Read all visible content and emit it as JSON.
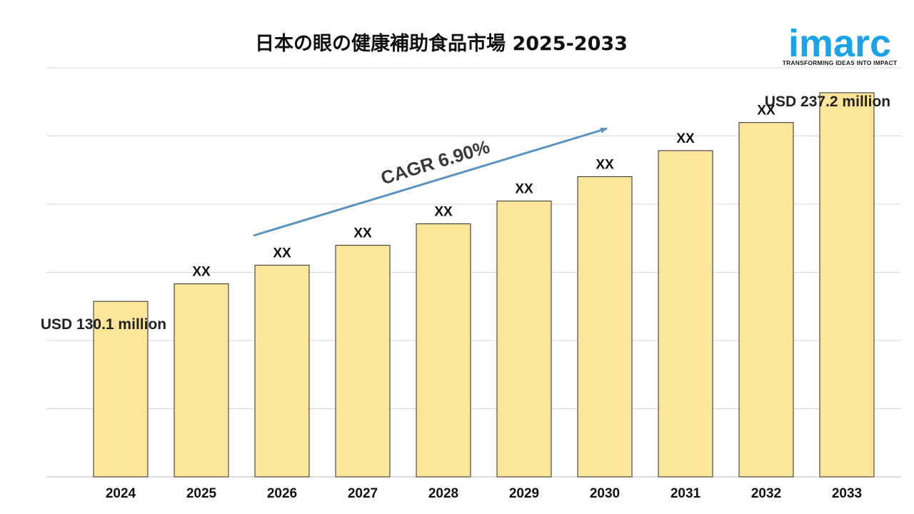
{
  "brand": {
    "logo_text": "imarc",
    "tagline": "TRANSFORMING IDEAS INTO IMPACT",
    "accent_color": "#1aa3e8"
  },
  "chart_data": {
    "type": "bar",
    "title": "日本の眼の健康補助食品市場 2025-2033",
    "categories": [
      "2024",
      "2025",
      "2026",
      "2027",
      "2028",
      "2029",
      "2030",
      "2031",
      "2032",
      "2033"
    ],
    "values": [
      130.1,
      139.1,
      148.7,
      158.9,
      169.9,
      181.6,
      194.1,
      207.5,
      221.9,
      237.2
    ],
    "data_labels": [
      "",
      "XX",
      "XX",
      "XX",
      "XX",
      "XX",
      "XX",
      "XX",
      "XX",
      ""
    ],
    "start_label": "USD 130.1 million",
    "end_label": "USD 237.2 million",
    "annotation": "CAGR 6.90%",
    "unit": "USD million",
    "ylim": [
      40,
      250
    ],
    "grid": true,
    "bar_color": "#fde59a",
    "bar_edge_color": "#2b2b2b",
    "arrow_color": "#5b93c0"
  }
}
